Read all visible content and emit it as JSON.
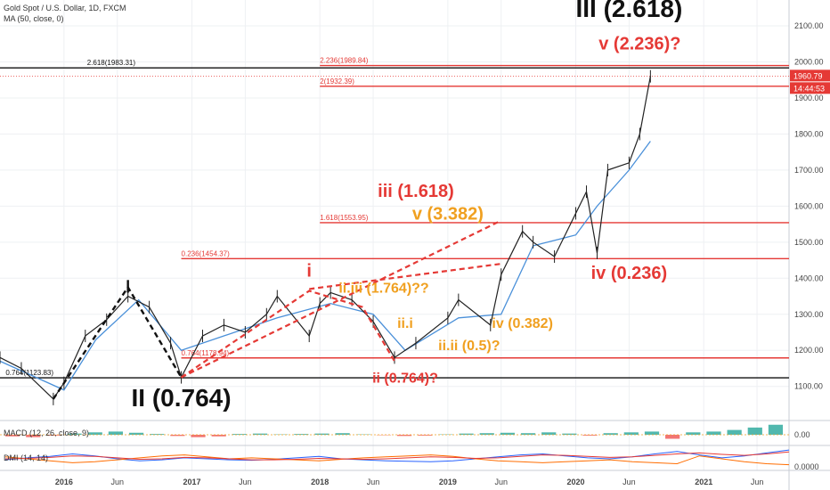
{
  "header": {
    "symbol_line": "Gold Spot / U.S. Dollar, 1D, FXCM",
    "ma_line": "MA (50, close, 0)",
    "macd_label": "MACD (12, 26, close, 9)",
    "dmi_label": "DMI (14, 14)"
  },
  "colors": {
    "red": "#e53935",
    "orange": "#f0a020",
    "black": "#111111",
    "ma": "#4a90d9",
    "candle": "#222222"
  },
  "chart_data": {
    "type": "line",
    "title": "Gold Spot / U.S. Dollar, 1D, FXCM",
    "x_ticks": [
      "2016",
      "Jun",
      "2017",
      "Jun",
      "2018",
      "Jun",
      "2019",
      "Jun",
      "2020",
      "Jun",
      "2021",
      "Jun"
    ],
    "y_ticks": [
      "2100.00",
      "2000.00",
      "1900.00",
      "1800.00",
      "1700.00",
      "1600.00",
      "1500.00",
      "1400.00",
      "1300.00",
      "1200.00",
      "1100.00"
    ],
    "ylim": [
      1065,
      2150
    ],
    "price_series": {
      "name": "Gold Spot / U.S. Dollar",
      "x": [
        "2015-07",
        "2015-09",
        "2015-12",
        "2016-01",
        "2016-03",
        "2016-05",
        "2016-07",
        "2016-09",
        "2016-11",
        "2016-12",
        "2017-02",
        "2017-04",
        "2017-06",
        "2017-08",
        "2017-09",
        "2017-12",
        "2018-01",
        "2018-02",
        "2018-04",
        "2018-06",
        "2018-08",
        "2018-10",
        "2019-01",
        "2019-02",
        "2019-05",
        "2019-06",
        "2019-08",
        "2019-09",
        "2019-11",
        "2020-01",
        "2020-02",
        "2020-03",
        "2020-04",
        "2020-06",
        "2020-07",
        "2020-08"
      ],
      "y": [
        1180,
        1150,
        1065,
        1110,
        1240,
        1285,
        1350,
        1320,
        1220,
        1125,
        1240,
        1270,
        1250,
        1300,
        1350,
        1240,
        1330,
        1360,
        1340,
        1280,
        1180,
        1220,
        1290,
        1340,
        1270,
        1410,
        1530,
        1500,
        1460,
        1580,
        1640,
        1470,
        1700,
        1720,
        1800,
        1960
      ]
    },
    "ma_series": {
      "name": "MA (50, close, 0)",
      "x": [
        "2015-07",
        "2016-01",
        "2016-04",
        "2016-08",
        "2016-12",
        "2017-04",
        "2017-09",
        "2018-02",
        "2018-06",
        "2018-09",
        "2019-02",
        "2019-06",
        "2019-09",
        "2020-01",
        "2020-03",
        "2020-06",
        "2020-08"
      ],
      "y": [
        1170,
        1090,
        1230,
        1340,
        1200,
        1240,
        1290,
        1330,
        1300,
        1200,
        1290,
        1300,
        1490,
        1520,
        1600,
        1700,
        1780
      ]
    },
    "last_price": "1960.79",
    "countdown": "14:44:53",
    "levels": [
      {
        "label": "2.236(1989.84)",
        "value": 1989.84,
        "color": "red",
        "from": "2018-01"
      },
      {
        "label": "2(1932.39)",
        "value": 1932.39,
        "color": "red",
        "from": "2018-01"
      },
      {
        "label": "1.618(1553.95)",
        "value": 1553.95,
        "color": "red",
        "from": "2018-01"
      },
      {
        "label": "0.236(1454.37)",
        "value": 1454.37,
        "color": "red",
        "from": "2016-12"
      },
      {
        "label": "0.764(1178.94)",
        "value": 1178.94,
        "color": "red",
        "from": "2016-12"
      },
      {
        "label": "2.618(1983.31)",
        "value": 1983.31,
        "color": "black",
        "from": "2015-07"
      },
      {
        "label": "0.764(1123.83)",
        "value": 1123.83,
        "color": "black",
        "from": "2015-07"
      }
    ],
    "annotations": [
      {
        "text": "III (2.618)",
        "x": "2020-06",
        "y": 2125,
        "color": "black",
        "size": "big"
      },
      {
        "text": "v (2.236)?",
        "x": "2020-07",
        "y": 2035,
        "color": "red",
        "size": "med"
      },
      {
        "text": "iii (1.618)",
        "x": "2018-10",
        "y": 1625,
        "color": "red",
        "size": "med"
      },
      {
        "text": "v (3.382)",
        "x": "2019-01",
        "y": 1562,
        "color": "orange",
        "size": "med"
      },
      {
        "text": "iv (0.236)",
        "x": "2020-06",
        "y": 1398,
        "color": "red",
        "size": "med"
      },
      {
        "text": "i",
        "x": "2017-12",
        "y": 1405,
        "color": "red",
        "size": "med"
      },
      {
        "text": "ii.iii (1.764)??",
        "x": "2018-07",
        "y": 1360,
        "color": "orange",
        "size": "small"
      },
      {
        "text": "ii.i",
        "x": "2018-09",
        "y": 1262,
        "color": "orange",
        "size": "small"
      },
      {
        "text": "iv (0.382)",
        "x": "2019-08",
        "y": 1262,
        "color": "orange",
        "size": "small"
      },
      {
        "text": "ii.ii (0.5)?",
        "x": "2019-03",
        "y": 1200,
        "color": "orange",
        "size": "small"
      },
      {
        "text": "ii (0.764)?",
        "x": "2018-09",
        "y": 1110,
        "color": "red",
        "size": "small"
      },
      {
        "text": "II (0.764)",
        "x": "2016-12",
        "y": 1045,
        "color": "black",
        "size": "big"
      }
    ],
    "wave_lines": [
      {
        "color": "black",
        "dash": true,
        "points": [
          [
            "2015-12",
            1065
          ],
          [
            "2016-07",
            1375
          ],
          [
            "2016-12",
            1125
          ]
        ]
      },
      {
        "color": "black",
        "dash": false,
        "points": [
          [
            "2016-07",
            1360
          ],
          [
            "2016-07",
            1395
          ]
        ]
      },
      {
        "color": "red",
        "dash": true,
        "points": [
          [
            "2016-12",
            1125
          ],
          [
            "2017-12",
            1365
          ],
          [
            "2018-05",
            1320
          ],
          [
            "2018-08",
            1170
          ]
        ]
      },
      {
        "color": "red",
        "dash": true,
        "points": [
          [
            "2016-12",
            1125
          ],
          [
            "2019-06",
            1560
          ]
        ]
      },
      {
        "color": "red",
        "dash": true,
        "points": [
          [
            "2017-12",
            1370
          ],
          [
            "2019-06",
            1440
          ]
        ]
      }
    ],
    "macd": {
      "label": "MACD (12, 26, close, 9)",
      "ticks": [
        "0.00"
      ],
      "histogram": [
        -4,
        -6,
        -2,
        3,
        6,
        8,
        5,
        2,
        -3,
        -6,
        -4,
        2,
        3,
        1,
        2,
        3,
        4,
        1,
        -1,
        -3,
        -2,
        1,
        3,
        4,
        5,
        4,
        6,
        3,
        -2,
        4,
        6,
        8,
        -10,
        6,
        8,
        12,
        18,
        25
      ]
    },
    "dmi": {
      "label": "DMI (14, 14)",
      "ticks": [
        "0.0000"
      ],
      "plus_di": [
        18,
        22,
        25,
        30,
        26,
        20,
        16,
        18,
        22,
        20,
        18,
        17,
        19,
        22,
        25,
        20,
        18,
        16,
        15,
        14,
        16,
        20,
        24,
        28,
        30,
        26,
        22,
        20,
        24,
        30,
        35,
        28,
        22,
        26,
        32,
        38
      ],
      "minus_di": [
        24,
        20,
        16,
        12,
        14,
        18,
        22,
        26,
        28,
        24,
        20,
        22,
        20,
        18,
        16,
        19,
        22,
        24,
        26,
        28,
        25,
        20,
        16,
        14,
        12,
        14,
        16,
        18,
        14,
        12,
        10,
        26,
        20,
        14,
        10,
        8
      ],
      "adx": [
        20,
        21,
        23,
        26,
        25,
        22,
        19,
        20,
        23,
        22,
        20,
        18,
        18,
        19,
        21,
        20,
        19,
        20,
        22,
        24,
        23,
        21,
        22,
        25,
        28,
        27,
        25,
        23,
        24,
        27,
        30,
        32,
        29,
        27,
        30,
        34
      ]
    }
  }
}
